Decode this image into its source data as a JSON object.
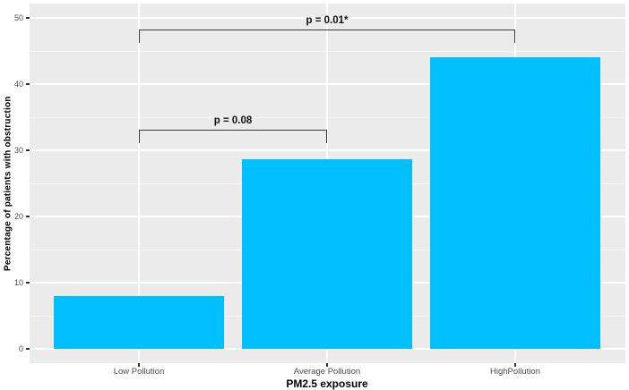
{
  "chart_data": {
    "type": "bar",
    "title": "",
    "categories": [
      "Low Pollution",
      "Average Pollution",
      "HighPollution"
    ],
    "values": [
      8,
      28.6,
      44
    ],
    "xlabel": "PM2.5 exposure",
    "ylabel": "Percentage of patients with obstruction",
    "ylim": [
      0,
      50
    ],
    "yticks": [
      0,
      10,
      20,
      30,
      40,
      50
    ],
    "yticks_minor": [
      5,
      15,
      25,
      35,
      45
    ],
    "grid": true,
    "legend_position": "none",
    "bar_color": "#00BFFF",
    "panel_background": "#EBEBEB",
    "grid_color": "#FFFFFF",
    "bracket_color": "#3a3a3a",
    "annotations": [
      {
        "label": "p = 0.08",
        "from_index": 0,
        "to_index": 1,
        "y_value": 33.1
      },
      {
        "label": "p = 0.01*",
        "from_index": 0,
        "to_index": 2,
        "y_value": 48.2
      }
    ]
  }
}
